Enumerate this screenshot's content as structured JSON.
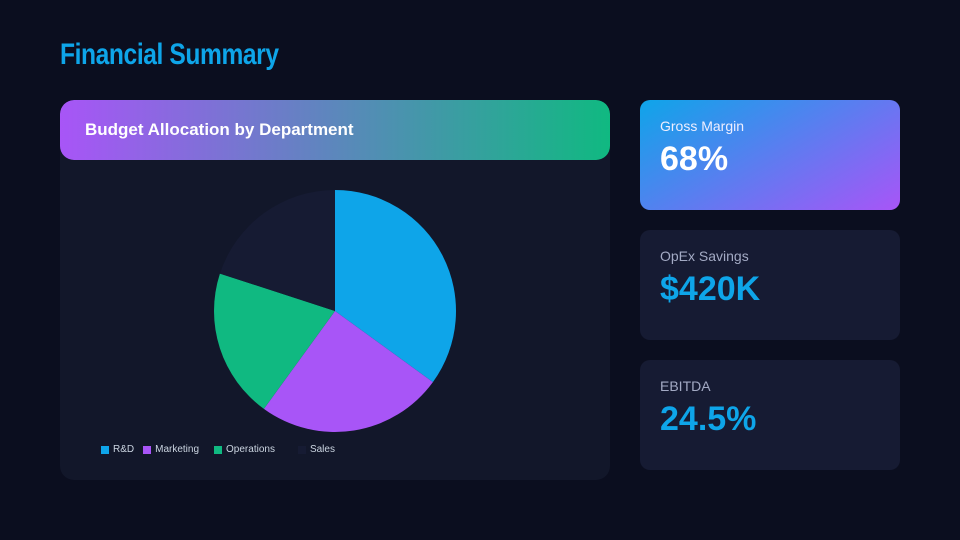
{
  "title": "Financial Summary",
  "kpis": [
    {
      "label": "Gross Margin",
      "value": "68%"
    },
    {
      "label": "OpEx Savings",
      "value": "$420K"
    },
    {
      "label": "EBITDA",
      "value": "24.5%"
    }
  ],
  "chart_data": {
    "type": "pie",
    "title": "Budget Allocation by Department",
    "categories": [
      "R&D",
      "Marketing",
      "Operations",
      "Sales"
    ],
    "values": [
      35,
      25,
      20,
      20
    ],
    "colors": [
      "#0ea5e9",
      "#a855f7",
      "#10b981",
      "#161b33"
    ],
    "legend": "bottom"
  }
}
